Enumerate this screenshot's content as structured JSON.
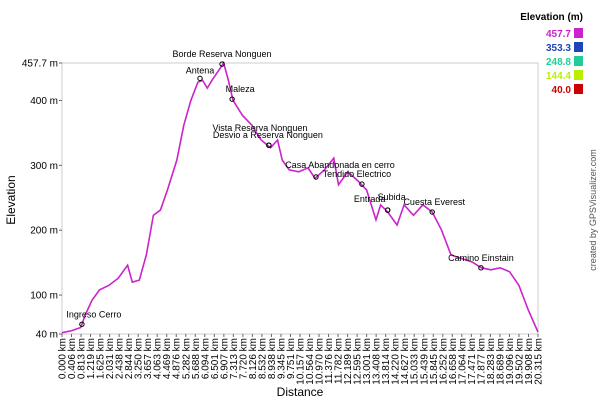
{
  "chart_data": {
    "type": "line",
    "x_label": "Distance",
    "y_label": "Elevation",
    "credit": "created by GPSVisualizer.com",
    "legend_title": "Elevation (m)",
    "legend": {
      "values": [
        457.7,
        353.3,
        248.8,
        144.4,
        40
      ],
      "value_labels": [
        "457.7",
        "353.3",
        "248.8",
        "144.4",
        "40.0"
      ],
      "colors": [
        "#cc22cc",
        "#2244bb",
        "#22cc99",
        "#bbee00",
        "#cc0000"
      ]
    },
    "x": [
      0.0,
      0.4,
      0.8,
      1.0,
      1.28,
      1.6,
      2.0,
      2.4,
      2.8,
      3.0,
      3.3,
      3.6,
      3.9,
      4.2,
      4.5,
      4.9,
      5.2,
      5.5,
      5.8,
      6.0,
      6.2,
      6.4,
      6.7,
      6.9,
      7.1,
      7.3,
      7.7,
      8.1,
      8.5,
      8.9,
      9.2,
      9.4,
      9.7,
      10.1,
      10.5,
      10.8,
      11.2,
      11.6,
      11.8,
      12.2,
      12.6,
      13.0,
      13.4,
      13.6,
      13.9,
      14.3,
      14.6,
      15.0,
      15.4,
      15.8,
      16.2,
      16.6,
      17.0,
      17.5,
      17.9,
      18.3,
      18.7,
      19.1,
      19.5,
      19.9,
      20.315
    ],
    "series": [
      {
        "name": "Elevation",
        "values": [
          42,
          45,
          50,
          70,
          92,
          108,
          115,
          126,
          146,
          120,
          123,
          162,
          223,
          231,
          262,
          308,
          362,
          400,
          428,
          431,
          419,
          431,
          447,
          457.7,
          431,
          400,
          377,
          362,
          339,
          327,
          339,
          308,
          293,
          290,
          296,
          280,
          293,
          311,
          270,
          290,
          277,
          262,
          216,
          239,
          228,
          208,
          239,
          223,
          239,
          228,
          200,
          162,
          157,
          151,
          142,
          139,
          142,
          136,
          115,
          77,
          43
        ]
      }
    ],
    "annotations": [
      {
        "text": "Ingreso Cerro",
        "x": 0.85,
        "y": 55
      },
      {
        "text": "Antena",
        "x": 5.89,
        "y": 434
      },
      {
        "text": "Borde Reserva Nonguen",
        "x": 6.83,
        "y": 456
      },
      {
        "text": "Maleza",
        "x": 7.26,
        "y": 402
      },
      {
        "text": "Vista Reserva Nonguen",
        "x": 8.83,
        "y": 331
      },
      {
        "text": "Desvio a Reserva Nonguen",
        "x": 8.83,
        "y": 331
      },
      {
        "text": "Casa Abandonada en cerro",
        "x": 10.84,
        "y": 282
      },
      {
        "text": "Tendido Electrico",
        "x": 12.8,
        "y": 271
      },
      {
        "text": "Entrada",
        "x": 13.9,
        "y": 231
      },
      {
        "text": "Subida",
        "x": 13.9,
        "y": 231
      },
      {
        "text": "Cuesta Everest",
        "x": 15.8,
        "y": 228
      },
      {
        "text": "Camino Einstain",
        "x": 17.88,
        "y": 142
      }
    ],
    "xlim": [
      0,
      20.315
    ],
    "ylim": [
      40,
      457.7
    ],
    "yticks": [
      {
        "value": 40,
        "label": "40 m"
      },
      {
        "value": 100,
        "label": "100 m"
      },
      {
        "value": 200,
        "label": "200 m"
      },
      {
        "value": 300,
        "label": "300 m"
      },
      {
        "value": 400,
        "label": "400 m"
      },
      {
        "value": 457.7,
        "label": "457.7 m"
      }
    ],
    "xticks": [
      {
        "value": 0,
        "label": "0.000 km"
      },
      {
        "value": 0.406,
        "label": "0.406 km"
      },
      {
        "value": 0.813,
        "label": "0.813 km"
      },
      {
        "value": 1.219,
        "label": "1.219 km"
      },
      {
        "value": 1.625,
        "label": "1.625 km"
      },
      {
        "value": 2.031,
        "label": "2.031 km"
      },
      {
        "value": 2.438,
        "label": "2.438 km"
      },
      {
        "value": 2.844,
        "label": "2.844 km"
      },
      {
        "value": 3.25,
        "label": "3.250 km"
      },
      {
        "value": 3.657,
        "label": "3.657 km"
      },
      {
        "value": 4.063,
        "label": "4.063 km"
      },
      {
        "value": 4.469,
        "label": "4.469 km"
      },
      {
        "value": 4.876,
        "label": "4.876 km"
      },
      {
        "value": 5.282,
        "label": "5.282 km"
      },
      {
        "value": 5.688,
        "label": "5.688 km"
      },
      {
        "value": 6.094,
        "label": "6.094 km"
      },
      {
        "value": 6.501,
        "label": "6.501 km"
      },
      {
        "value": 6.907,
        "label": "6.907 km"
      },
      {
        "value": 7.313,
        "label": "7.313 km"
      },
      {
        "value": 7.72,
        "label": "7.720 km"
      },
      {
        "value": 8.126,
        "label": "8.126 km"
      },
      {
        "value": 8.532,
        "label": "8.532 km"
      },
      {
        "value": 8.938,
        "label": "8.938 km"
      },
      {
        "value": 9.345,
        "label": "9.345 km"
      },
      {
        "value": 9.751,
        "label": "9.751 km"
      },
      {
        "value": 10.157,
        "label": "10.157 km"
      },
      {
        "value": 10.564,
        "label": "10.564 km"
      },
      {
        "value": 10.97,
        "label": "10.970 km"
      },
      {
        "value": 11.376,
        "label": "11.376 km"
      },
      {
        "value": 11.782,
        "label": "11.782 km"
      },
      {
        "value": 12.189,
        "label": "12.189 km"
      },
      {
        "value": 12.595,
        "label": "12.595 km"
      },
      {
        "value": 13.001,
        "label": "13.001 km"
      },
      {
        "value": 13.408,
        "label": "13.408 km"
      },
      {
        "value": 13.814,
        "label": "13.814 km"
      },
      {
        "value": 14.22,
        "label": "14.220 km"
      },
      {
        "value": 14.627,
        "label": "14.627 km"
      },
      {
        "value": 15.033,
        "label": "15.033 km"
      },
      {
        "value": 15.439,
        "label": "15.439 km"
      },
      {
        "value": 15.845,
        "label": "15.845 km"
      },
      {
        "value": 16.252,
        "label": "16.252 km"
      },
      {
        "value": 16.658,
        "label": "16.658 km"
      },
      {
        "value": 17.064,
        "label": "17.064 km"
      },
      {
        "value": 17.471,
        "label": "17.471 km"
      },
      {
        "value": 17.877,
        "label": "17.877 km"
      },
      {
        "value": 18.283,
        "label": "18.283 km"
      },
      {
        "value": 18.689,
        "label": "18.689 km"
      },
      {
        "value": 19.096,
        "label": "19.096 km"
      },
      {
        "value": 19.502,
        "label": "19.502 km"
      },
      {
        "value": 19.908,
        "label": "19.908 km"
      },
      {
        "value": 20.315,
        "label": "20.315 km"
      }
    ]
  }
}
